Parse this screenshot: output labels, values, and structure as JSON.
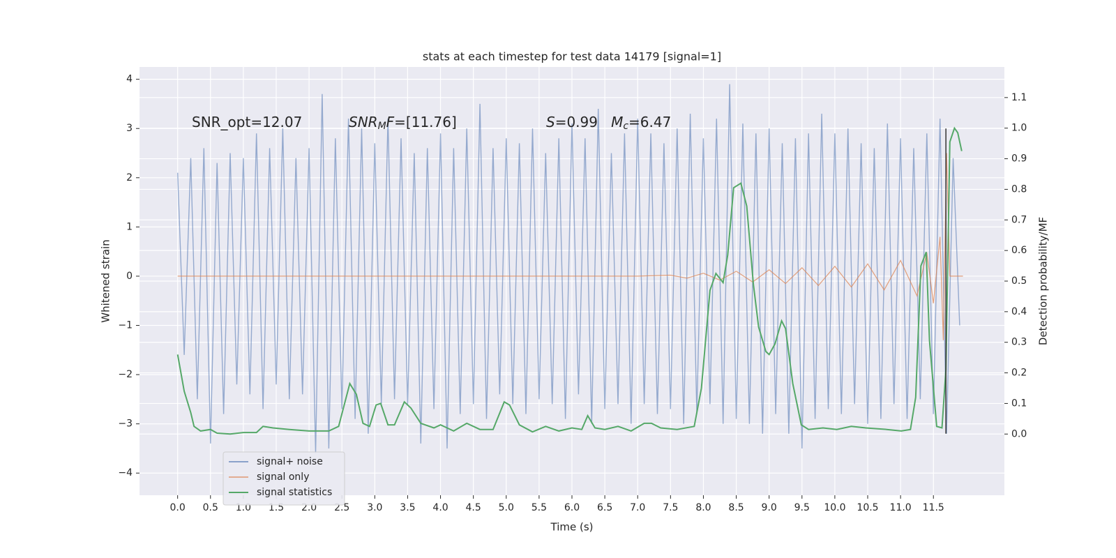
{
  "chart_data": {
    "type": "line",
    "title": "stats at each timestep for test data 14179 [signal=1]",
    "xlabel": "Time (s)",
    "ylabel": "Whitened strain",
    "y2label": "Detection probability/MF",
    "annotations": [
      [
        {
          "text": "SNR_opt=12.07",
          "style": "normal"
        }
      ],
      [
        {
          "text": "SNR",
          "style": "italic"
        },
        {
          "text": "M",
          "style": "sub"
        },
        {
          "text": "F",
          "style": "italic"
        },
        {
          "text": "=[11.76]",
          "style": "normal"
        }
      ],
      [
        {
          "text": "S",
          "style": "italic"
        },
        {
          "text": "=0.99   ",
          "style": "normal"
        },
        {
          "text": "M",
          "style": "italic"
        },
        {
          "text": "c",
          "style": "sub"
        },
        {
          "text": "=6.47",
          "style": "normal"
        }
      ]
    ],
    "xlim": [
      -0.58,
      12.58
    ],
    "ylim": [
      -4.45,
      4.25
    ],
    "y2lim": [
      -0.2,
      1.2
    ],
    "xticks": [
      {
        "value": 0,
        "label": "0.0"
      },
      0.5,
      {
        "value": 1,
        "label": "1.0"
      },
      1.5,
      {
        "value": 2,
        "label": "2.0"
      },
      2.5,
      {
        "value": 3,
        "label": "3.0"
      },
      3.5,
      {
        "value": 4,
        "label": "4.0"
      },
      4.5,
      {
        "value": 5,
        "label": "5.0"
      },
      5.5,
      {
        "value": 6,
        "label": "6.0"
      },
      6.5,
      {
        "value": 7,
        "label": "7.0"
      },
      7.5,
      {
        "value": 8,
        "label": "8.0"
      },
      8.5,
      {
        "value": 9,
        "label": "9.0"
      },
      9.5,
      {
        "value": 10,
        "label": "10.0"
      },
      10.5,
      {
        "value": 11,
        "label": "11.0"
      },
      11.5
    ],
    "yticks": [
      {
        "value": -4,
        "label": "−4"
      },
      {
        "value": -3,
        "label": "−3"
      },
      {
        "value": -2,
        "label": "−2"
      },
      {
        "value": -1,
        "label": "−1"
      },
      0,
      1,
      2,
      3,
      4
    ],
    "y2ticks": [
      {
        "value": 0,
        "label": "0.0"
      },
      0.1,
      0.2,
      0.3,
      0.4,
      0.5,
      0.6,
      0.7,
      0.8,
      0.9,
      {
        "value": 1,
        "label": "1.0"
      },
      1.1
    ],
    "grid": true,
    "legend": "lower left",
    "series": [
      {
        "name": "signal+ noise",
        "color": "#4c72b0",
        "x": [
          0,
          0.1,
          0.2,
          0.3,
          0.4,
          0.5,
          0.6,
          0.7,
          0.8,
          0.9,
          1,
          1.1,
          1.2,
          1.3,
          1.4,
          1.5,
          1.6,
          1.7,
          1.8,
          1.9,
          2,
          2.1,
          2.2,
          2.3,
          2.4,
          2.5,
          2.6,
          2.7,
          2.8,
          2.9,
          3,
          3.1,
          3.2,
          3.3,
          3.4,
          3.5,
          3.6,
          3.7,
          3.8,
          3.9,
          4,
          4.1,
          4.2,
          4.3,
          4.4,
          4.5,
          4.6,
          4.7,
          4.8,
          4.9,
          5,
          5.1,
          5.2,
          5.3,
          5.4,
          5.5,
          5.6,
          5.7,
          5.8,
          5.9,
          6,
          6.1,
          6.2,
          6.3,
          6.4,
          6.5,
          6.6,
          6.7,
          6.8,
          6.9,
          7,
          7.1,
          7.2,
          7.3,
          7.4,
          7.5,
          7.6,
          7.7,
          7.8,
          7.9,
          8,
          8.1,
          8.2,
          8.3,
          8.4,
          8.5,
          8.6,
          8.7,
          8.8,
          8.9,
          9,
          9.1,
          9.2,
          9.3,
          9.4,
          9.5,
          9.6,
          9.7,
          9.8,
          9.9,
          10,
          10.1,
          10.2,
          10.3,
          10.4,
          10.5,
          10.6,
          10.7,
          10.8,
          10.9,
          11,
          11.1,
          11.2,
          11.3,
          11.4,
          11.5,
          11.6,
          11.7,
          11.8,
          11.9
        ],
        "values": [
          2.1,
          -1.6,
          2.4,
          -2.5,
          2.6,
          -3.4,
          2.3,
          -2.8,
          2.5,
          -2.2,
          2.4,
          -2.4,
          2.9,
          -2.7,
          2.6,
          -2.2,
          3.0,
          -2.5,
          2.4,
          -2.4,
          2.6,
          -3.6,
          3.7,
          -3.5,
          2.8,
          -2.7,
          3.2,
          -2.9,
          3.0,
          -3.2,
          2.7,
          -2.6,
          3.2,
          -2.5,
          2.8,
          -2.6,
          2.5,
          -3.4,
          2.6,
          -2.7,
          2.9,
          -3.5,
          2.6,
          -2.8,
          3.0,
          -2.6,
          3.5,
          -2.9,
          2.6,
          -2.4,
          2.8,
          -2.6,
          2.7,
          -2.8,
          3.0,
          -2.5,
          2.5,
          -2.6,
          2.8,
          -2.9,
          3.1,
          -2.4,
          2.8,
          -3.0,
          3.4,
          -2.7,
          2.5,
          -2.6,
          2.9,
          -3.0,
          3.2,
          -2.6,
          2.9,
          -2.8,
          2.7,
          -2.7,
          3.0,
          -3.0,
          3.3,
          -2.8,
          2.8,
          -2.6,
          3.2,
          -3.0,
          3.9,
          -2.9,
          3.1,
          -3.0,
          2.9,
          -3.2,
          3.0,
          -2.8,
          2.7,
          -3.2,
          2.8,
          -3.5,
          2.9,
          -2.9,
          3.3,
          -2.7,
          2.9,
          -2.8,
          3.0,
          -2.6,
          2.7,
          -3.0,
          2.6,
          -2.9,
          3.1,
          -2.6,
          2.8,
          -2.9,
          2.6,
          -2.5,
          2.9,
          -2.8,
          3.2,
          -3.2,
          2.4,
          -1.0
        ]
      },
      {
        "name": "signal only",
        "color": "#dd8452",
        "x": [
          0,
          7,
          7.5,
          7.75,
          8,
          8.25,
          8.5,
          8.75,
          9,
          9.25,
          9.5,
          9.75,
          10,
          10.25,
          10.5,
          10.75,
          11,
          11.25,
          11.4,
          11.5,
          11.6,
          11.65,
          11.7,
          11.75,
          11.95
        ],
        "values": [
          0,
          0,
          0.02,
          -0.04,
          0.06,
          -0.08,
          0.1,
          -0.12,
          0.13,
          -0.15,
          0.17,
          -0.19,
          0.2,
          -0.22,
          0.25,
          -0.28,
          0.32,
          -0.4,
          0.48,
          -0.55,
          0.8,
          -1.3,
          2.5,
          0,
          0
        ]
      },
      {
        "name": "signal statistics",
        "color": "#55a868",
        "axis": "y2",
        "x": [
          0,
          0.1,
          0.2,
          0.25,
          0.35,
          0.5,
          0.6,
          0.8,
          1,
          1.2,
          1.3,
          1.45,
          1.7,
          2,
          2.3,
          2.45,
          2.62,
          2.72,
          2.82,
          2.92,
          3.02,
          3.09,
          3.2,
          3.3,
          3.45,
          3.55,
          3.7,
          3.9,
          4,
          4.2,
          4.4,
          4.6,
          4.8,
          4.97,
          5.05,
          5.2,
          5.4,
          5.6,
          5.8,
          6,
          6.15,
          6.24,
          6.35,
          6.5,
          6.7,
          6.9,
          7.1,
          7.21,
          7.35,
          7.6,
          7.86,
          7.97,
          8.1,
          8.19,
          8.3,
          8.37,
          8.46,
          8.57,
          8.66,
          8.76,
          8.84,
          8.95,
          9,
          9.09,
          9.19,
          9.25,
          9.36,
          9.49,
          9.6,
          9.82,
          10.03,
          10.25,
          10.47,
          10.79,
          11.01,
          11.15,
          11.23,
          11.31,
          11.39,
          11.44,
          11.55,
          11.63,
          11.69,
          11.75,
          11.82,
          11.87,
          11.93
        ],
        "values": [
          0.26,
          0.14,
          0.07,
          0.025,
          0.01,
          0.015,
          0.003,
          0,
          0.005,
          0.005,
          0.025,
          0.02,
          0.015,
          0.01,
          0.01,
          0.025,
          0.165,
          0.13,
          0.035,
          0.025,
          0.095,
          0.1,
          0.03,
          0.03,
          0.105,
          0.085,
          0.035,
          0.02,
          0.03,
          0.01,
          0.035,
          0.015,
          0.015,
          0.105,
          0.095,
          0.03,
          0.007,
          0.025,
          0.01,
          0.02,
          0.015,
          0.06,
          0.02,
          0.015,
          0.025,
          0.01,
          0.035,
          0.035,
          0.02,
          0.015,
          0.025,
          0.15,
          0.47,
          0.525,
          0.495,
          0.585,
          0.805,
          0.82,
          0.745,
          0.49,
          0.35,
          0.27,
          0.26,
          0.295,
          0.37,
          0.345,
          0.165,
          0.03,
          0.015,
          0.02,
          0.015,
          0.025,
          0.02,
          0.015,
          0.01,
          0.015,
          0.12,
          0.55,
          0.595,
          0.305,
          0.025,
          0.02,
          0.21,
          0.955,
          1.0,
          0.985,
          0.925
        ]
      }
    ],
    "vline": {
      "x": 11.69,
      "ymin": -3.2,
      "ymax": 3.0,
      "color": "#333333"
    }
  }
}
